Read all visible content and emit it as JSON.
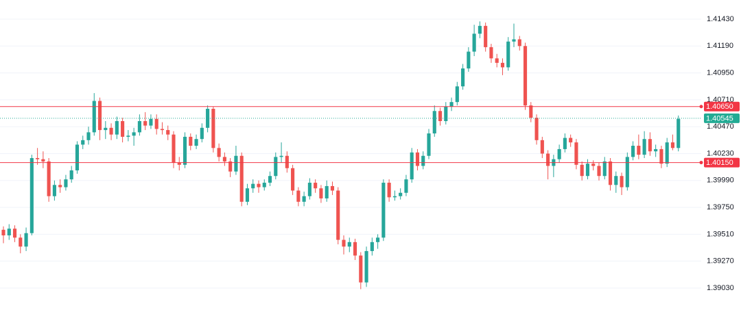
{
  "chart_data": {
    "type": "candlestick",
    "up_color": "#26a69a",
    "down_color": "#ef5350",
    "grid": true,
    "ylim": [
      1.38816,
      1.41601
    ],
    "yticks": [
      {
        "value": 1.4143,
        "label": "1.41430"
      },
      {
        "value": 1.4119,
        "label": "1.41190"
      },
      {
        "value": 1.4095,
        "label": "1.40950"
      },
      {
        "value": 1.4071,
        "label": "1.40710"
      },
      {
        "value": 1.4047,
        "label": "1.40470"
      },
      {
        "value": 1.4023,
        "label": "1.40230"
      },
      {
        "value": 1.3999,
        "label": "1.39990"
      },
      {
        "value": 1.3975,
        "label": "1.39750"
      },
      {
        "value": 1.3951,
        "label": "1.39510"
      },
      {
        "value": 1.3927,
        "label": "1.39270"
      },
      {
        "value": 1.3903,
        "label": "1.39030"
      }
    ],
    "levels": [
      {
        "value": 1.4065,
        "label": "1.40650",
        "color": "#f23645",
        "style": "solid"
      },
      {
        "value": 1.40545,
        "label": "1.40545",
        "color": "#22ab94",
        "style": "dotted"
      },
      {
        "value": 1.4015,
        "label": "1.40150",
        "color": "#f23645",
        "style": "solid"
      }
    ],
    "ohlc": [
      [
        1.3955,
        1.3958,
        1.3943,
        1.395
      ],
      [
        1.395,
        1.396,
        1.3946,
        1.3956
      ],
      [
        1.3956,
        1.3959,
        1.3944,
        1.3948
      ],
      [
        1.3948,
        1.3951,
        1.3934,
        1.394
      ],
      [
        1.394,
        1.3957,
        1.3936,
        1.3952
      ],
      [
        1.3952,
        1.4022,
        1.395,
        1.4019
      ],
      [
        1.4019,
        1.4028,
        1.4013,
        1.4018
      ],
      [
        1.4018,
        1.4025,
        1.401,
        1.4016
      ],
      [
        1.4016,
        1.4019,
        1.398,
        1.3985
      ],
      [
        1.3985,
        1.3999,
        1.3981,
        1.3995
      ],
      [
        1.3995,
        1.4,
        1.3988,
        1.3993
      ],
      [
        1.3993,
        1.4004,
        1.399,
        1.4
      ],
      [
        1.4,
        1.4012,
        1.3997,
        1.4008
      ],
      [
        1.4008,
        1.4034,
        1.4005,
        1.4031
      ],
      [
        1.4031,
        1.4039,
        1.4027,
        1.4035
      ],
      [
        1.4035,
        1.4047,
        1.4031,
        1.4042
      ],
      [
        1.4042,
        1.4077,
        1.4039,
        1.407
      ],
      [
        1.407,
        1.4073,
        1.4035,
        1.4044
      ],
      [
        1.4044,
        1.4052,
        1.4036,
        1.4046
      ],
      [
        1.4046,
        1.405,
        1.4035,
        1.404
      ],
      [
        1.404,
        1.4056,
        1.4036,
        1.4052
      ],
      [
        1.4052,
        1.4055,
        1.4033,
        1.4038
      ],
      [
        1.4038,
        1.4044,
        1.4034,
        1.4039
      ],
      [
        1.4039,
        1.4046,
        1.403,
        1.4042
      ],
      [
        1.4042,
        1.4058,
        1.4039,
        1.4052
      ],
      [
        1.4052,
        1.406,
        1.4044,
        1.4048
      ],
      [
        1.4048,
        1.4058,
        1.4045,
        1.4054
      ],
      [
        1.4054,
        1.4058,
        1.404,
        1.4045
      ],
      [
        1.4045,
        1.4051,
        1.404,
        1.4044
      ],
      [
        1.4044,
        1.4048,
        1.4035,
        1.404
      ],
      [
        1.404,
        1.4043,
        1.401,
        1.4015
      ],
      [
        1.4015,
        1.402,
        1.4008,
        1.4013
      ],
      [
        1.4013,
        1.4042,
        1.401,
        1.4038
      ],
      [
        1.4038,
        1.4041,
        1.4026,
        1.403
      ],
      [
        1.403,
        1.404,
        1.4027,
        1.4036
      ],
      [
        1.4036,
        1.405,
        1.4033,
        1.4046
      ],
      [
        1.4046,
        1.4066,
        1.4042,
        1.4063
      ],
      [
        1.4063,
        1.4065,
        1.4024,
        1.4028
      ],
      [
        1.4028,
        1.4032,
        1.4016,
        1.402
      ],
      [
        1.402,
        1.4024,
        1.4012,
        1.4016
      ],
      [
        1.4016,
        1.4019,
        1.4002,
        1.4007
      ],
      [
        1.4007,
        1.403,
        1.4004,
        1.4021
      ],
      [
        1.4021,
        1.4024,
        1.3976,
        1.398
      ],
      [
        1.398,
        1.3996,
        1.3977,
        1.3992
      ],
      [
        1.3992,
        1.4,
        1.3988,
        1.3996
      ],
      [
        1.3996,
        1.3999,
        1.3988,
        1.3993
      ],
      [
        1.3993,
        1.4,
        1.399,
        1.3997
      ],
      [
        1.3997,
        1.4007,
        1.3994,
        1.4003
      ],
      [
        1.4003,
        1.4024,
        1.4,
        1.402
      ],
      [
        1.402,
        1.4033,
        1.4015,
        1.4021
      ],
      [
        1.4021,
        1.4025,
        1.4006,
        1.401
      ],
      [
        1.401,
        1.4013,
        1.3986,
        1.399
      ],
      [
        1.399,
        1.3993,
        1.3976,
        1.398
      ],
      [
        1.398,
        1.3989,
        1.3976,
        1.3985
      ],
      [
        1.3985,
        1.4001,
        1.3982,
        1.3997
      ],
      [
        1.3997,
        1.4,
        1.3988,
        1.3992
      ],
      [
        1.3992,
        1.3995,
        1.3979,
        1.3983
      ],
      [
        1.3983,
        1.3999,
        1.398,
        1.3994
      ],
      [
        1.3994,
        1.3998,
        1.3986,
        1.399
      ],
      [
        1.399,
        1.3993,
        1.3942,
        1.3946
      ],
      [
        1.3946,
        1.395,
        1.3933,
        1.394
      ],
      [
        1.394,
        1.3948,
        1.3935,
        1.3944
      ],
      [
        1.3944,
        1.3947,
        1.3928,
        1.3932
      ],
      [
        1.3932,
        1.3935,
        1.3902,
        1.3908
      ],
      [
        1.3908,
        1.394,
        1.3904,
        1.3936
      ],
      [
        1.3936,
        1.3948,
        1.3932,
        1.3944
      ],
      [
        1.3944,
        1.3951,
        1.3938,
        1.3948
      ],
      [
        1.3948,
        1.4,
        1.3945,
        1.3997
      ],
      [
        1.3997,
        1.4,
        1.398,
        1.3984
      ],
      [
        1.3984,
        1.399,
        1.3981,
        1.3985
      ],
      [
        1.3985,
        1.3992,
        1.3982,
        1.3988
      ],
      [
        1.3988,
        1.4004,
        1.3985,
        1.4
      ],
      [
        1.4,
        1.4028,
        1.3997,
        1.4024
      ],
      [
        1.4024,
        1.4027,
        1.4008,
        1.4012
      ],
      [
        1.4012,
        1.4025,
        1.4009,
        1.4021
      ],
      [
        1.4021,
        1.4045,
        1.4018,
        1.4041
      ],
      [
        1.4041,
        1.4066,
        1.4038,
        1.4061
      ],
      [
        1.4061,
        1.4064,
        1.4048,
        1.4052
      ],
      [
        1.4052,
        1.4069,
        1.4049,
        1.4065
      ],
      [
        1.4065,
        1.4073,
        1.4061,
        1.4069
      ],
      [
        1.4069,
        1.4087,
        1.4066,
        1.4083
      ],
      [
        1.4083,
        1.4103,
        1.408,
        1.4099
      ],
      [
        1.4099,
        1.4118,
        1.4096,
        1.4114
      ],
      [
        1.4114,
        1.4138,
        1.411,
        1.413
      ],
      [
        1.413,
        1.4141,
        1.4126,
        1.4137
      ],
      [
        1.4137,
        1.414,
        1.4114,
        1.4118
      ],
      [
        1.4118,
        1.4121,
        1.4104,
        1.4108
      ],
      [
        1.4108,
        1.4112,
        1.41,
        1.4104
      ],
      [
        1.4104,
        1.4108,
        1.4093,
        1.41
      ],
      [
        1.41,
        1.4127,
        1.4097,
        1.4123
      ],
      [
        1.4123,
        1.4139,
        1.4118,
        1.4125
      ],
      [
        1.4125,
        1.4128,
        1.4115,
        1.4119
      ],
      [
        1.4119,
        1.4122,
        1.4062,
        1.4066
      ],
      [
        1.4066,
        1.4069,
        1.4051,
        1.4055
      ],
      [
        1.4055,
        1.4058,
        1.4031,
        1.4035
      ],
      [
        1.4035,
        1.4038,
        1.4019,
        1.4023
      ],
      [
        1.4023,
        1.4026,
        1.4,
        1.4012
      ],
      [
        1.4012,
        1.4022,
        1.4002,
        1.4018
      ],
      [
        1.4018,
        1.4031,
        1.4015,
        1.4027
      ],
      [
        1.4027,
        1.4041,
        1.4024,
        1.4037
      ],
      [
        1.4037,
        1.404,
        1.4029,
        1.4033
      ],
      [
        1.4033,
        1.4036,
        1.4009,
        1.4013
      ],
      [
        1.4013,
        1.4016,
        1.3999,
        1.4003
      ],
      [
        1.4003,
        1.4018,
        1.4,
        1.4014
      ],
      [
        1.4014,
        1.4017,
        1.4008,
        1.4012
      ],
      [
        1.4012,
        1.4015,
        1.3999,
        1.4003
      ],
      [
        1.4003,
        1.402,
        1.4,
        1.4016
      ],
      [
        1.4016,
        1.4019,
        1.399,
        1.3995
      ],
      [
        1.3995,
        1.4007,
        1.3988,
        1.4003
      ],
      [
        1.4003,
        1.4006,
        1.3986,
        1.3993
      ],
      [
        1.3993,
        1.4024,
        1.399,
        1.402
      ],
      [
        1.402,
        1.4034,
        1.4017,
        1.403
      ],
      [
        1.403,
        1.404,
        1.4018,
        1.4022
      ],
      [
        1.4022,
        1.4043,
        1.4019,
        1.4036
      ],
      [
        1.4036,
        1.4042,
        1.4021,
        1.4025
      ],
      [
        1.4025,
        1.4031,
        1.402,
        1.4027
      ],
      [
        1.4027,
        1.403,
        1.401,
        1.4014
      ],
      [
        1.4014,
        1.4037,
        1.4011,
        1.4033
      ],
      [
        1.4033,
        1.404,
        1.4026,
        1.4028
      ],
      [
        1.4028,
        1.4057,
        1.4025,
        1.4054
      ]
    ]
  }
}
